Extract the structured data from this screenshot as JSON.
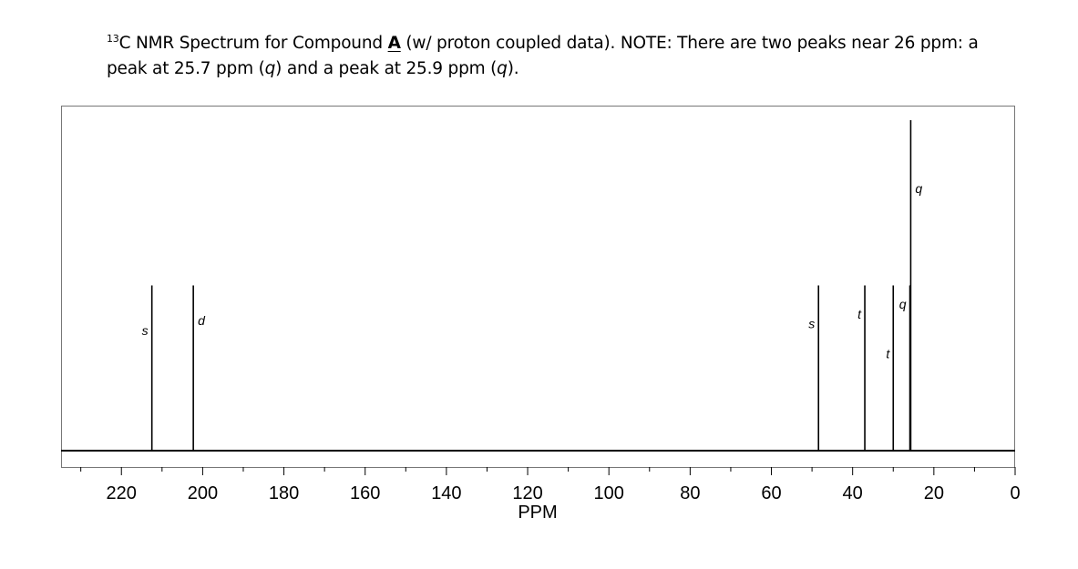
{
  "caption": {
    "sup": "13",
    "part1": "C NMR Spectrum for Compound ",
    "compound": "A",
    "part2": " (w/ proton coupled data).  NOTE:  There are two peaks near 26 ppm:  a peak at 25.7 ppm (",
    "mult1": "q",
    "part3": ") and a peak at 25.9 ppm (",
    "mult2": "q",
    "part4": ")."
  },
  "chart_data": {
    "type": "line",
    "xlabel": "PPM",
    "xlim": [
      0,
      232
    ],
    "x_reversed": true,
    "ylim": [
      0,
      1
    ],
    "x_ticks": [
      220,
      200,
      180,
      160,
      140,
      120,
      100,
      80,
      60,
      40,
      20,
      0
    ],
    "x_minor_ticks": [
      230,
      210,
      190,
      170,
      150,
      130,
      110,
      90,
      70,
      50,
      30,
      10
    ],
    "peaks": [
      {
        "ppm": 212.5,
        "height": 0.5,
        "label": "s",
        "label_side": "left",
        "label_height": 0.35
      },
      {
        "ppm": 202.3,
        "height": 0.5,
        "label": "d",
        "label_side": "right",
        "label_height": 0.38
      },
      {
        "ppm": 48.4,
        "height": 0.5,
        "label": "s",
        "label_side": "left",
        "label_height": 0.37
      },
      {
        "ppm": 37.0,
        "height": 0.5,
        "label": "t",
        "label_side": "left",
        "label_height": 0.4
      },
      {
        "ppm": 30.0,
        "height": 0.5,
        "label": "t",
        "label_side": "left",
        "label_height": 0.28
      },
      {
        "ppm": 25.9,
        "height": 0.5,
        "label": "q",
        "label_side": "left",
        "label_height": 0.43
      },
      {
        "ppm": 25.7,
        "height": 1.0,
        "label": "q",
        "label_side": "right",
        "label_height": 0.78
      }
    ]
  }
}
